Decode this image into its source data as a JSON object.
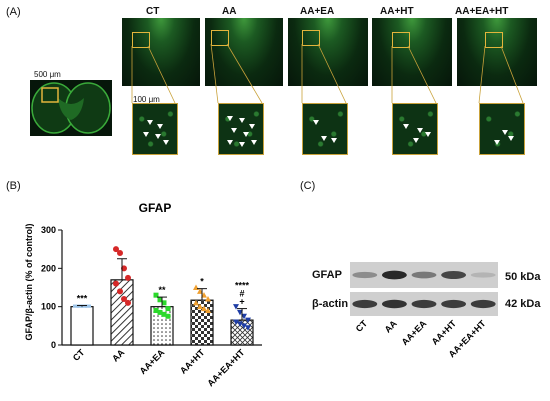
{
  "panels": {
    "a": "(A)",
    "b": "(B)",
    "c": "(C)"
  },
  "groups": [
    "CT",
    "AA",
    "AA+EA",
    "AA+HT",
    "AA+EA+HT"
  ],
  "scale_bars": {
    "overview": "500 μm",
    "zoom": "100 μm"
  },
  "chart_data": {
    "type": "bar",
    "title": "GFAP",
    "ylabel": "GFAP/β-actin (% of control)",
    "categories": [
      "CT",
      "AA",
      "AA+EA",
      "AA+HT",
      "AA+EA+HT"
    ],
    "values": [
      100,
      170,
      100,
      117,
      65
    ],
    "errors": [
      3,
      55,
      25,
      30,
      30
    ],
    "ylim": [
      0,
      300
    ],
    "yticks": [
      0,
      100,
      200,
      300
    ],
    "significance": [
      "***",
      "",
      "**",
      "*",
      "****\n#\n+"
    ],
    "colors": [
      "#9cc4e8",
      "#d62828",
      "#2bd92b",
      "#f0a030",
      "#1f3ea6"
    ],
    "points": [
      [
        100,
        100,
        100,
        100,
        100,
        100,
        100,
        100
      ],
      [
        250,
        240,
        200,
        175,
        160,
        140,
        120,
        110
      ],
      [
        130,
        118,
        110,
        95,
        90,
        85,
        80,
        75
      ],
      [
        150,
        140,
        130,
        120,
        110,
        100,
        95,
        90
      ],
      [
        100,
        85,
        75,
        65,
        60,
        55,
        50,
        45
      ]
    ]
  },
  "western": {
    "bands": [
      {
        "name": "GFAP",
        "kda": "50 kDa",
        "intensities": [
          0.45,
          0.95,
          0.55,
          0.8,
          0.25
        ]
      },
      {
        "name": "β-actin",
        "kda": "42 kDa",
        "intensities": [
          0.85,
          0.9,
          0.85,
          0.85,
          0.85
        ]
      }
    ],
    "lanes": [
      "CT",
      "AA",
      "AA+EA",
      "AA+HT",
      "AA+EA+HT"
    ]
  }
}
